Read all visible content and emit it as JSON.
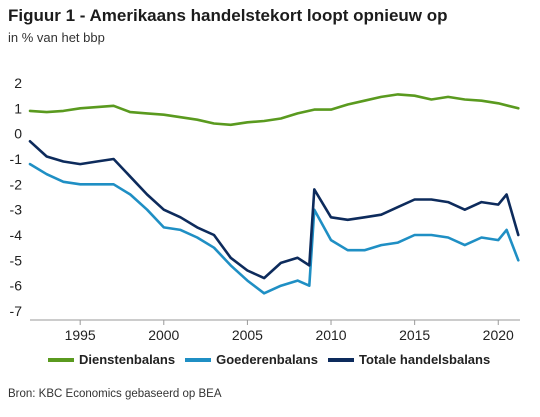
{
  "title": "Figuur 1 - Amerikaans handelstekort loopt opnieuw op",
  "subtitle": "in % van het bbp",
  "source": "Bron: KBC Economics gebaseerd op BEA",
  "colors": {
    "diensten": "#5a9a1f",
    "goederen": "#1f8fc4",
    "totaal": "#0d2b5c",
    "axis": "#999999"
  },
  "chart_data": {
    "type": "line",
    "title": "Figuur 1 - Amerikaans handelstekort loopt opnieuw op",
    "ylabel": "in % van het bbp",
    "xlabel": "",
    "xlim": [
      1992,
      2021.3
    ],
    "ylim": [
      -7,
      2
    ],
    "xticks": [
      1995,
      2000,
      2005,
      2010,
      2015,
      2020
    ],
    "yticks": [
      -7,
      -6,
      -5,
      -4,
      -3,
      -2,
      -1,
      0,
      1,
      2
    ],
    "grid": false,
    "legend_position": "bottom",
    "series": [
      {
        "name": "Dienstenbalans",
        "color": "#5a9a1f",
        "x": [
          1992,
          1993,
          1994,
          1995,
          1996,
          1997,
          1998,
          1999,
          2000,
          2001,
          2002,
          2003,
          2004,
          2005,
          2006,
          2007,
          2008,
          2009,
          2010,
          2011,
          2012,
          2013,
          2014,
          2015,
          2016,
          2017,
          2018,
          2019,
          2020,
          2021.2
        ],
        "y": [
          0.9,
          0.85,
          0.9,
          1.0,
          1.05,
          1.1,
          0.85,
          0.8,
          0.75,
          0.65,
          0.55,
          0.4,
          0.35,
          0.45,
          0.5,
          0.6,
          0.8,
          0.95,
          0.95,
          1.15,
          1.3,
          1.45,
          1.55,
          1.5,
          1.35,
          1.45,
          1.35,
          1.3,
          1.2,
          1.0
        ]
      },
      {
        "name": "Goederenbalans",
        "color": "#1f8fc4",
        "x": [
          1992,
          1993,
          1994,
          1995,
          1996,
          1997,
          1998,
          1999,
          2000,
          2001,
          2002,
          2003,
          2004,
          2005,
          2006,
          2007,
          2008,
          2008.7,
          2009,
          2010,
          2011,
          2012,
          2013,
          2014,
          2015,
          2016,
          2017,
          2018,
          2019,
          2020,
          2020.5,
          2021.2
        ],
        "y": [
          -1.2,
          -1.6,
          -1.9,
          -2.0,
          -2.0,
          -2.0,
          -2.4,
          -3.0,
          -3.7,
          -3.8,
          -4.1,
          -4.5,
          -5.2,
          -5.8,
          -6.3,
          -6.0,
          -5.8,
          -6.0,
          -3.0,
          -4.2,
          -4.6,
          -4.6,
          -4.4,
          -4.3,
          -4.0,
          -4.0,
          -4.1,
          -4.4,
          -4.1,
          -4.2,
          -3.8,
          -5.0
        ]
      },
      {
        "name": "Totale handelsbalans",
        "color": "#0d2b5c",
        "x": [
          1992,
          1993,
          1994,
          1995,
          1996,
          1997,
          1998,
          1999,
          2000,
          2001,
          2002,
          2003,
          2004,
          2005,
          2006,
          2007,
          2008,
          2008.7,
          2009,
          2010,
          2011,
          2012,
          2013,
          2014,
          2015,
          2016,
          2017,
          2018,
          2019,
          2020,
          2020.5,
          2021.2
        ],
        "y": [
          -0.3,
          -0.9,
          -1.1,
          -1.2,
          -1.1,
          -1.0,
          -1.7,
          -2.4,
          -3.0,
          -3.3,
          -3.7,
          -4.0,
          -4.9,
          -5.4,
          -5.7,
          -5.1,
          -4.9,
          -5.2,
          -2.2,
          -3.3,
          -3.4,
          -3.3,
          -3.2,
          -2.9,
          -2.6,
          -2.6,
          -2.7,
          -3.0,
          -2.7,
          -2.8,
          -2.4,
          -4.0
        ]
      }
    ]
  }
}
